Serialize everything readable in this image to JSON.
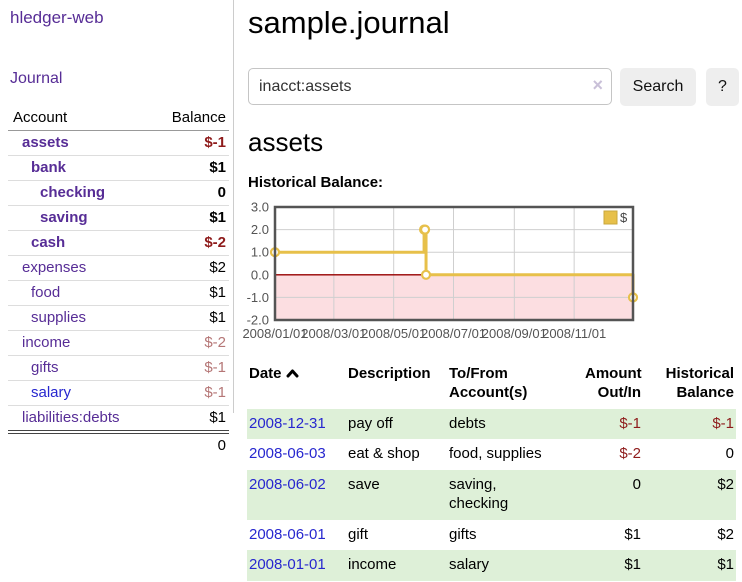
{
  "app": {
    "title": "hledger-web"
  },
  "sidebar": {
    "journal_link": "Journal",
    "accounts": {
      "header_account": "Account",
      "header_balance": "Balance",
      "rows": [
        {
          "name": "assets",
          "balance": "$-1"
        },
        {
          "name": "bank",
          "balance": "$1"
        },
        {
          "name": "checking",
          "balance": "0"
        },
        {
          "name": "saving",
          "balance": "$1"
        },
        {
          "name": "cash",
          "balance": "$-2"
        },
        {
          "name": "expenses",
          "balance": "$2"
        },
        {
          "name": "food",
          "balance": "$1"
        },
        {
          "name": "supplies",
          "balance": "$1"
        },
        {
          "name": "income",
          "balance": "$-2"
        },
        {
          "name": "gifts",
          "balance": "$-1"
        },
        {
          "name": "salary",
          "balance": "$-1"
        },
        {
          "name": "liabilities:debts",
          "balance": "$1"
        }
      ],
      "total": "0"
    }
  },
  "header": {
    "title": "sample.journal"
  },
  "search": {
    "value": "inacct:assets",
    "clear_icon": "×",
    "button_label": "Search",
    "help_label": "?"
  },
  "account_page": {
    "title": "assets",
    "chart_title": "Historical Balance:"
  },
  "chart_data": {
    "type": "line",
    "step": true,
    "title": "Historical Balance:",
    "series": [
      {
        "name": "$",
        "color": "#e7c04a",
        "points": [
          [
            "2008-01-01",
            1
          ],
          [
            "2008-06-01",
            2
          ],
          [
            "2008-06-02",
            2
          ],
          [
            "2008-06-03",
            0
          ],
          [
            "2008-12-31",
            -1
          ]
        ]
      }
    ],
    "xlim": [
      "2008-01-01",
      "2008-12-31"
    ],
    "ylim": [
      -2,
      3
    ],
    "x_ticks": [
      {
        "label": "2008/01/01",
        "date": "2008-01-01"
      },
      {
        "label": "2008/03/01",
        "date": "2008-03-01"
      },
      {
        "label": "2008/05/01",
        "date": "2008-05-01"
      },
      {
        "label": "2008/07/01",
        "date": "2008-07-01"
      },
      {
        "label": "2008/09/01",
        "date": "2008-09-01"
      },
      {
        "label": "2008/11/01",
        "date": "2008-11-01"
      }
    ],
    "y_ticks": [
      {
        "label": "3.0",
        "value": 3
      },
      {
        "label": "2.0",
        "value": 2
      },
      {
        "label": "1.0",
        "value": 1
      },
      {
        "label": "0.0",
        "value": 0
      },
      {
        "label": "-1.0",
        "value": -1
      },
      {
        "label": "-2.0",
        "value": -2
      }
    ],
    "legend": {
      "position": "top-right",
      "label": "$"
    },
    "grid": true,
    "colors": {
      "grid": "#cfcfcf",
      "border": "#545454",
      "zero_line": "#990000",
      "negative_region": "#fcdee1",
      "tick_text": "#545454"
    }
  },
  "register": {
    "headers": {
      "date": "Date",
      "description": "Description",
      "accounts": "To/From Account(s)",
      "amount": "Amount Out/In",
      "balance": "Historical Balance"
    },
    "rows": [
      {
        "date": "2008-12-31",
        "description": "pay off",
        "accounts": "debts",
        "amount": "$-1",
        "balance": "$-1"
      },
      {
        "date": "2008-06-03",
        "description": "eat & shop",
        "accounts": "food, supplies",
        "amount": "$-2",
        "balance": "0"
      },
      {
        "date": "2008-06-02",
        "description": "save",
        "accounts": "saving,\nchecking",
        "amount": "0",
        "balance": "$2"
      },
      {
        "date": "2008-06-01",
        "description": "gift",
        "accounts": "gifts",
        "amount": "$1",
        "balance": "$2"
      },
      {
        "date": "2008-01-01",
        "description": "income",
        "accounts": "salary",
        "amount": "$1",
        "balance": "$1"
      }
    ]
  }
}
